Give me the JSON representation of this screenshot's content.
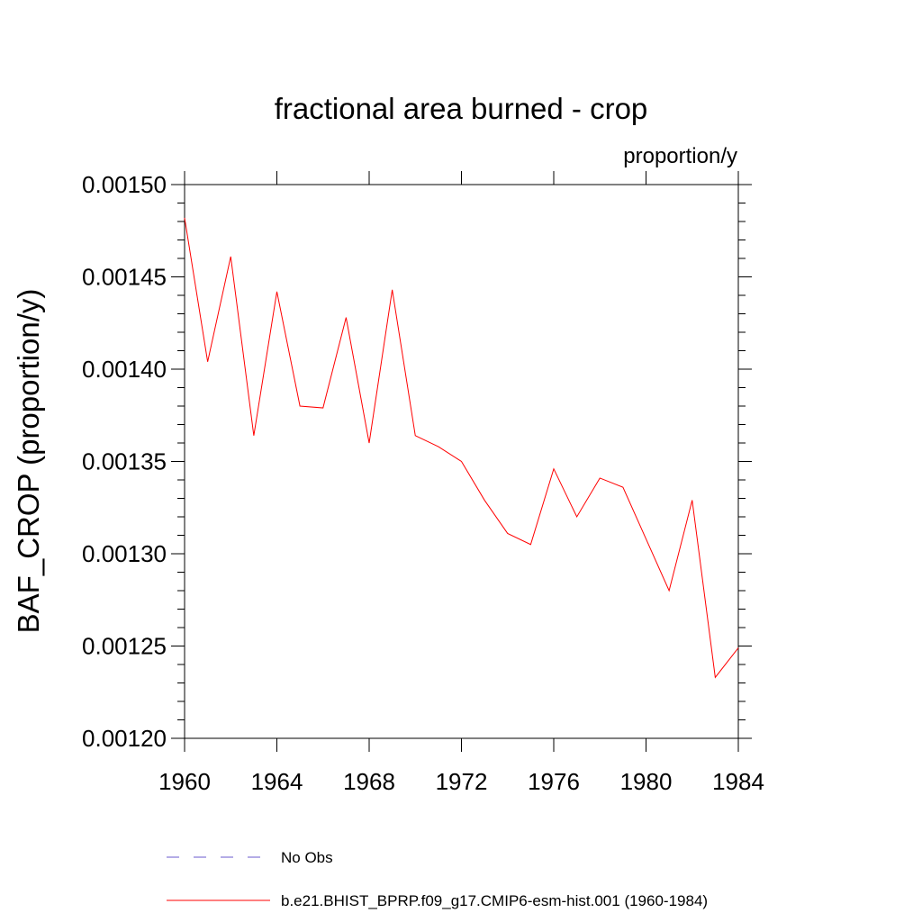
{
  "chart_data": {
    "type": "line",
    "title": "fractional area burned - crop",
    "units": "proportion/y",
    "xlabel": "",
    "ylabel": "BAF_CROP  (proportion/y)",
    "xlim": [
      1960,
      1984
    ],
    "ylim": [
      0.0012,
      0.0015
    ],
    "x_ticks": [
      1960,
      1964,
      1968,
      1972,
      1976,
      1980,
      1984
    ],
    "x_tick_labels": [
      "1960",
      "1964",
      "1968",
      "1972",
      "1976",
      "1980",
      "1984"
    ],
    "y_ticks": [
      0.0012,
      0.00125,
      0.0013,
      0.00135,
      0.0014,
      0.00145,
      0.0015
    ],
    "y_tick_labels": [
      "0.00120",
      "0.00125",
      "0.00130",
      "0.00135",
      "0.00140",
      "0.00145",
      "0.00150"
    ],
    "grid": false,
    "legend_position": "bottom",
    "series": [
      {
        "name": "No Obs",
        "color": "#6a5acd",
        "style": "dashed",
        "x": [],
        "values": []
      },
      {
        "name": "b.e21.BHIST_BPRP.f09_g17.CMIP6-esm-hist.001 (1960-1984)",
        "color": "#ff0000",
        "style": "solid",
        "x": [
          1960,
          1961,
          1962,
          1963,
          1964,
          1965,
          1966,
          1967,
          1968,
          1969,
          1970,
          1971,
          1972,
          1973,
          1974,
          1975,
          1976,
          1977,
          1978,
          1979,
          1980,
          1981,
          1982,
          1983,
          1984
        ],
        "values": [
          0.001482,
          0.001404,
          0.001461,
          0.001364,
          0.001442,
          0.00138,
          0.001379,
          0.001428,
          0.00136,
          0.001443,
          0.001364,
          0.001358,
          0.00135,
          0.001329,
          0.001311,
          0.001305,
          0.001346,
          0.00132,
          0.001341,
          0.001336,
          0.001308,
          0.00128,
          0.001329,
          0.001233,
          0.001249
        ]
      }
    ]
  }
}
